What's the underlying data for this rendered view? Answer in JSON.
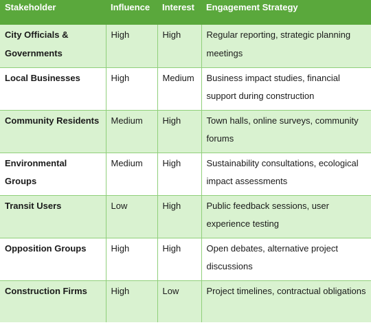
{
  "table": {
    "headers": [
      "Stakeholder",
      "Influence",
      "Interest",
      "Engagement Strategy"
    ],
    "rows": [
      [
        "City Officials & Governments",
        "High",
        "High",
        "Regular reporting, strategic planning meetings"
      ],
      [
        "Local Businesses",
        "High",
        "Medium",
        "Business impact studies, financial support during construction"
      ],
      [
        "Community Residents",
        "Medium",
        "High",
        "Town halls, online surveys, community forums"
      ],
      [
        "Environmental Groups",
        "Medium",
        "High",
        "Sustainability consultations, ecological impact assessments"
      ],
      [
        "Transit Users",
        "Low",
        "High",
        "Public feedback sessions, user experience testing"
      ],
      [
        "Opposition Groups",
        "High",
        "High",
        "Open debates, alternative project discussions"
      ],
      [
        "Construction Firms",
        "High",
        "Low",
        "Project timelines, contractual obligations"
      ]
    ]
  },
  "colors": {
    "header_bg": "#5aa83c",
    "band_bg": "#d9f2d0",
    "grid": "#8fcf7a"
  }
}
